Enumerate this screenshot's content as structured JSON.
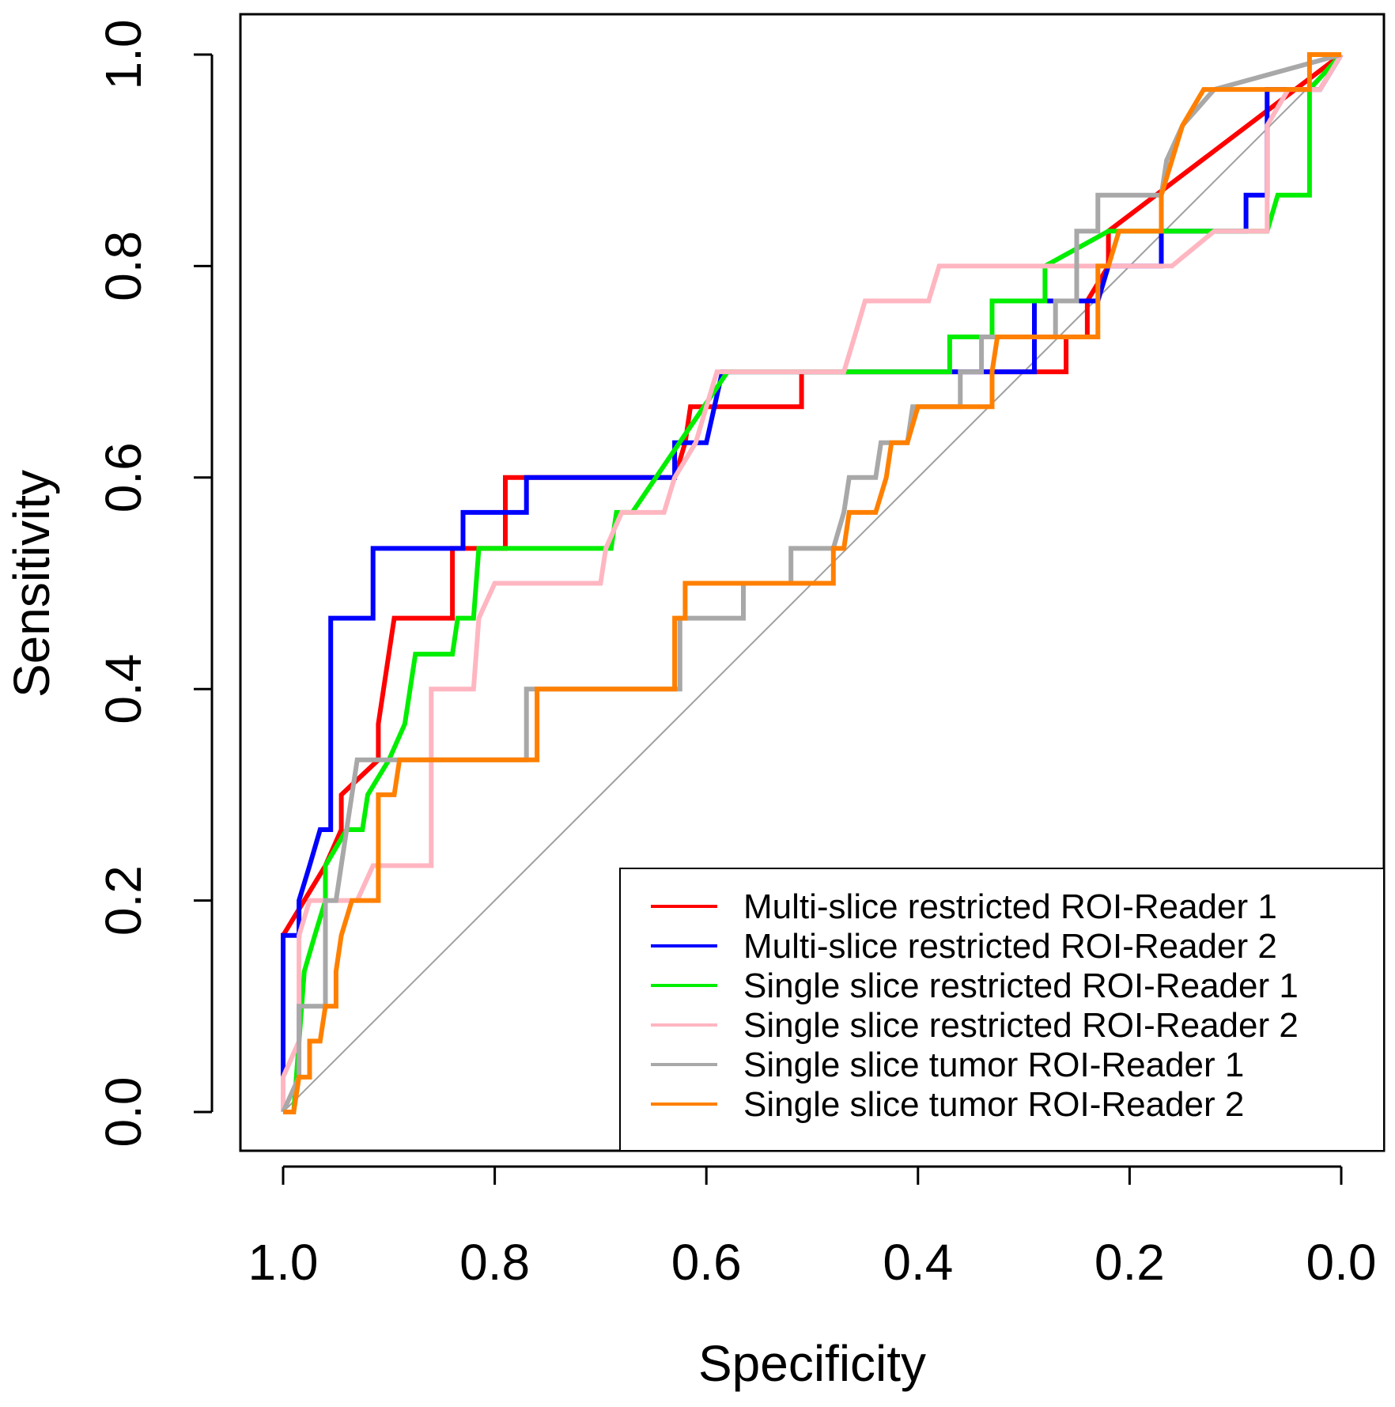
{
  "chart_data": {
    "type": "line",
    "subtype": "roc-step",
    "title": "",
    "xlabel": "Specificity",
    "ylabel": "Sensitivity",
    "xlim": [
      1.04,
      -0.04
    ],
    "ylim": [
      -0.04,
      1.04
    ],
    "x_reversed": true,
    "grid": false,
    "x_ticks": [
      1.0,
      0.8,
      0.6,
      0.4,
      0.2,
      0.0
    ],
    "x_tick_labels": [
      "1.0",
      "0.8",
      "0.6",
      "0.4",
      "0.2",
      "0.0"
    ],
    "y_ticks": [
      0.0,
      0.2,
      0.4,
      0.6,
      0.8,
      1.0
    ],
    "y_tick_labels": [
      "0.0",
      "0.2",
      "0.4",
      "0.6",
      "0.8",
      "1.0"
    ],
    "reference_line": {
      "from": [
        1.0,
        0.0
      ],
      "to": [
        0.0,
        1.0
      ],
      "color": "#a0a0a0"
    },
    "legend": {
      "position": "bottom-right"
    },
    "series": [
      {
        "name": "Multi-slice restricted ROI-Reader 1",
        "color": "#ff0000",
        "points": [
          [
            1.0,
            0.0
          ],
          [
            1.0,
            0.167
          ],
          [
            0.96,
            0.233
          ],
          [
            0.945,
            0.267
          ],
          [
            0.945,
            0.3
          ],
          [
            0.91,
            0.333
          ],
          [
            0.91,
            0.367
          ],
          [
            0.895,
            0.467
          ],
          [
            0.84,
            0.467
          ],
          [
            0.84,
            0.533
          ],
          [
            0.79,
            0.533
          ],
          [
            0.79,
            0.6
          ],
          [
            0.77,
            0.6
          ],
          [
            0.63,
            0.6
          ],
          [
            0.62,
            0.633
          ],
          [
            0.615,
            0.667
          ],
          [
            0.51,
            0.667
          ],
          [
            0.51,
            0.7
          ],
          [
            0.26,
            0.7
          ],
          [
            0.26,
            0.733
          ],
          [
            0.24,
            0.733
          ],
          [
            0.24,
            0.767
          ],
          [
            0.22,
            0.8
          ],
          [
            0.22,
            0.833
          ],
          [
            0.0,
            1.0
          ]
        ]
      },
      {
        "name": "Multi-slice restricted ROI-Reader 2",
        "color": "#0000ff",
        "points": [
          [
            1.0,
            0.0
          ],
          [
            1.0,
            0.167
          ],
          [
            0.985,
            0.167
          ],
          [
            0.985,
            0.2
          ],
          [
            0.975,
            0.233
          ],
          [
            0.965,
            0.267
          ],
          [
            0.955,
            0.267
          ],
          [
            0.955,
            0.467
          ],
          [
            0.915,
            0.467
          ],
          [
            0.915,
            0.533
          ],
          [
            0.83,
            0.533
          ],
          [
            0.83,
            0.567
          ],
          [
            0.77,
            0.567
          ],
          [
            0.77,
            0.6
          ],
          [
            0.63,
            0.6
          ],
          [
            0.63,
            0.633
          ],
          [
            0.6,
            0.633
          ],
          [
            0.585,
            0.7
          ],
          [
            0.36,
            0.7
          ],
          [
            0.34,
            0.7
          ],
          [
            0.29,
            0.7
          ],
          [
            0.29,
            0.767
          ],
          [
            0.23,
            0.767
          ],
          [
            0.22,
            0.8
          ],
          [
            0.17,
            0.8
          ],
          [
            0.17,
            0.833
          ],
          [
            0.09,
            0.833
          ],
          [
            0.09,
            0.867
          ],
          [
            0.07,
            0.867
          ],
          [
            0.07,
            0.967
          ],
          [
            0.02,
            0.967
          ],
          [
            0.0,
            1.0
          ]
        ]
      },
      {
        "name": "Single slice restricted ROI-Reader 1",
        "color": "#00ee00",
        "points": [
          [
            1.0,
            0.0
          ],
          [
            0.99,
            0.0
          ],
          [
            0.98,
            0.133
          ],
          [
            0.97,
            0.167
          ],
          [
            0.96,
            0.2
          ],
          [
            0.96,
            0.233
          ],
          [
            0.94,
            0.267
          ],
          [
            0.925,
            0.267
          ],
          [
            0.92,
            0.3
          ],
          [
            0.9,
            0.333
          ],
          [
            0.885,
            0.367
          ],
          [
            0.875,
            0.433
          ],
          [
            0.84,
            0.433
          ],
          [
            0.835,
            0.467
          ],
          [
            0.82,
            0.467
          ],
          [
            0.815,
            0.533
          ],
          [
            0.69,
            0.533
          ],
          [
            0.685,
            0.567
          ],
          [
            0.67,
            0.567
          ],
          [
            0.58,
            0.7
          ],
          [
            0.47,
            0.7
          ],
          [
            0.37,
            0.7
          ],
          [
            0.37,
            0.733
          ],
          [
            0.33,
            0.733
          ],
          [
            0.33,
            0.767
          ],
          [
            0.28,
            0.767
          ],
          [
            0.28,
            0.8
          ],
          [
            0.22,
            0.833
          ],
          [
            0.07,
            0.833
          ],
          [
            0.06,
            0.867
          ],
          [
            0.03,
            0.867
          ],
          [
            0.03,
            0.967
          ],
          [
            0.0,
            1.0
          ]
        ]
      },
      {
        "name": "Single slice restricted ROI-Reader 2",
        "color": "#ffb6c1",
        "points": [
          [
            1.0,
            0.0
          ],
          [
            1.0,
            0.033
          ],
          [
            0.985,
            0.067
          ],
          [
            0.985,
            0.167
          ],
          [
            0.975,
            0.2
          ],
          [
            0.93,
            0.2
          ],
          [
            0.915,
            0.233
          ],
          [
            0.86,
            0.233
          ],
          [
            0.86,
            0.4
          ],
          [
            0.82,
            0.4
          ],
          [
            0.815,
            0.467
          ],
          [
            0.8,
            0.5
          ],
          [
            0.7,
            0.5
          ],
          [
            0.695,
            0.533
          ],
          [
            0.68,
            0.567
          ],
          [
            0.64,
            0.567
          ],
          [
            0.63,
            0.6
          ],
          [
            0.61,
            0.633
          ],
          [
            0.6,
            0.667
          ],
          [
            0.59,
            0.7
          ],
          [
            0.47,
            0.7
          ],
          [
            0.46,
            0.733
          ],
          [
            0.45,
            0.767
          ],
          [
            0.39,
            0.767
          ],
          [
            0.38,
            0.8
          ],
          [
            0.16,
            0.8
          ],
          [
            0.12,
            0.833
          ],
          [
            0.07,
            0.833
          ],
          [
            0.07,
            0.933
          ],
          [
            0.05,
            0.967
          ],
          [
            0.02,
            0.967
          ],
          [
            0.0,
            1.0
          ]
        ]
      },
      {
        "name": "Single slice tumor ROI-Reader 1",
        "color": "#a8a8a8",
        "points": [
          [
            1.0,
            0.0
          ],
          [
            0.985,
            0.033
          ],
          [
            0.985,
            0.1
          ],
          [
            0.96,
            0.1
          ],
          [
            0.96,
            0.2
          ],
          [
            0.95,
            0.2
          ],
          [
            0.94,
            0.267
          ],
          [
            0.935,
            0.3
          ],
          [
            0.93,
            0.333
          ],
          [
            0.9,
            0.333
          ],
          [
            0.9,
            0.333
          ],
          [
            0.77,
            0.333
          ],
          [
            0.77,
            0.4
          ],
          [
            0.625,
            0.4
          ],
          [
            0.625,
            0.467
          ],
          [
            0.565,
            0.467
          ],
          [
            0.565,
            0.5
          ],
          [
            0.52,
            0.5
          ],
          [
            0.52,
            0.533
          ],
          [
            0.48,
            0.533
          ],
          [
            0.47,
            0.567
          ],
          [
            0.465,
            0.6
          ],
          [
            0.44,
            0.6
          ],
          [
            0.435,
            0.633
          ],
          [
            0.41,
            0.633
          ],
          [
            0.405,
            0.667
          ],
          [
            0.36,
            0.667
          ],
          [
            0.36,
            0.7
          ],
          [
            0.34,
            0.7
          ],
          [
            0.34,
            0.733
          ],
          [
            0.27,
            0.733
          ],
          [
            0.27,
            0.767
          ],
          [
            0.25,
            0.767
          ],
          [
            0.25,
            0.833
          ],
          [
            0.23,
            0.833
          ],
          [
            0.23,
            0.867
          ],
          [
            0.17,
            0.867
          ],
          [
            0.165,
            0.9
          ],
          [
            0.15,
            0.933
          ],
          [
            0.12,
            0.967
          ],
          [
            0.0,
            1.0
          ]
        ]
      },
      {
        "name": "Single slice tumor ROI-Reader 2",
        "color": "#ff8000",
        "points": [
          [
            1.0,
            0.0
          ],
          [
            0.99,
            0.0
          ],
          [
            0.985,
            0.033
          ],
          [
            0.975,
            0.033
          ],
          [
            0.975,
            0.067
          ],
          [
            0.965,
            0.067
          ],
          [
            0.96,
            0.1
          ],
          [
            0.95,
            0.1
          ],
          [
            0.95,
            0.133
          ],
          [
            0.945,
            0.167
          ],
          [
            0.935,
            0.2
          ],
          [
            0.91,
            0.2
          ],
          [
            0.91,
            0.3
          ],
          [
            0.895,
            0.3
          ],
          [
            0.89,
            0.333
          ],
          [
            0.76,
            0.333
          ],
          [
            0.76,
            0.4
          ],
          [
            0.63,
            0.4
          ],
          [
            0.63,
            0.467
          ],
          [
            0.62,
            0.467
          ],
          [
            0.62,
            0.5
          ],
          [
            0.48,
            0.5
          ],
          [
            0.48,
            0.533
          ],
          [
            0.47,
            0.533
          ],
          [
            0.465,
            0.567
          ],
          [
            0.44,
            0.567
          ],
          [
            0.43,
            0.6
          ],
          [
            0.425,
            0.633
          ],
          [
            0.41,
            0.633
          ],
          [
            0.4,
            0.667
          ],
          [
            0.33,
            0.667
          ],
          [
            0.33,
            0.7
          ],
          [
            0.325,
            0.733
          ],
          [
            0.23,
            0.733
          ],
          [
            0.23,
            0.8
          ],
          [
            0.22,
            0.8
          ],
          [
            0.21,
            0.833
          ],
          [
            0.17,
            0.833
          ],
          [
            0.17,
            0.867
          ],
          [
            0.16,
            0.9
          ],
          [
            0.15,
            0.933
          ],
          [
            0.13,
            0.967
          ],
          [
            0.03,
            0.967
          ],
          [
            0.03,
            1.0
          ],
          [
            0.0,
            1.0
          ]
        ]
      }
    ]
  }
}
